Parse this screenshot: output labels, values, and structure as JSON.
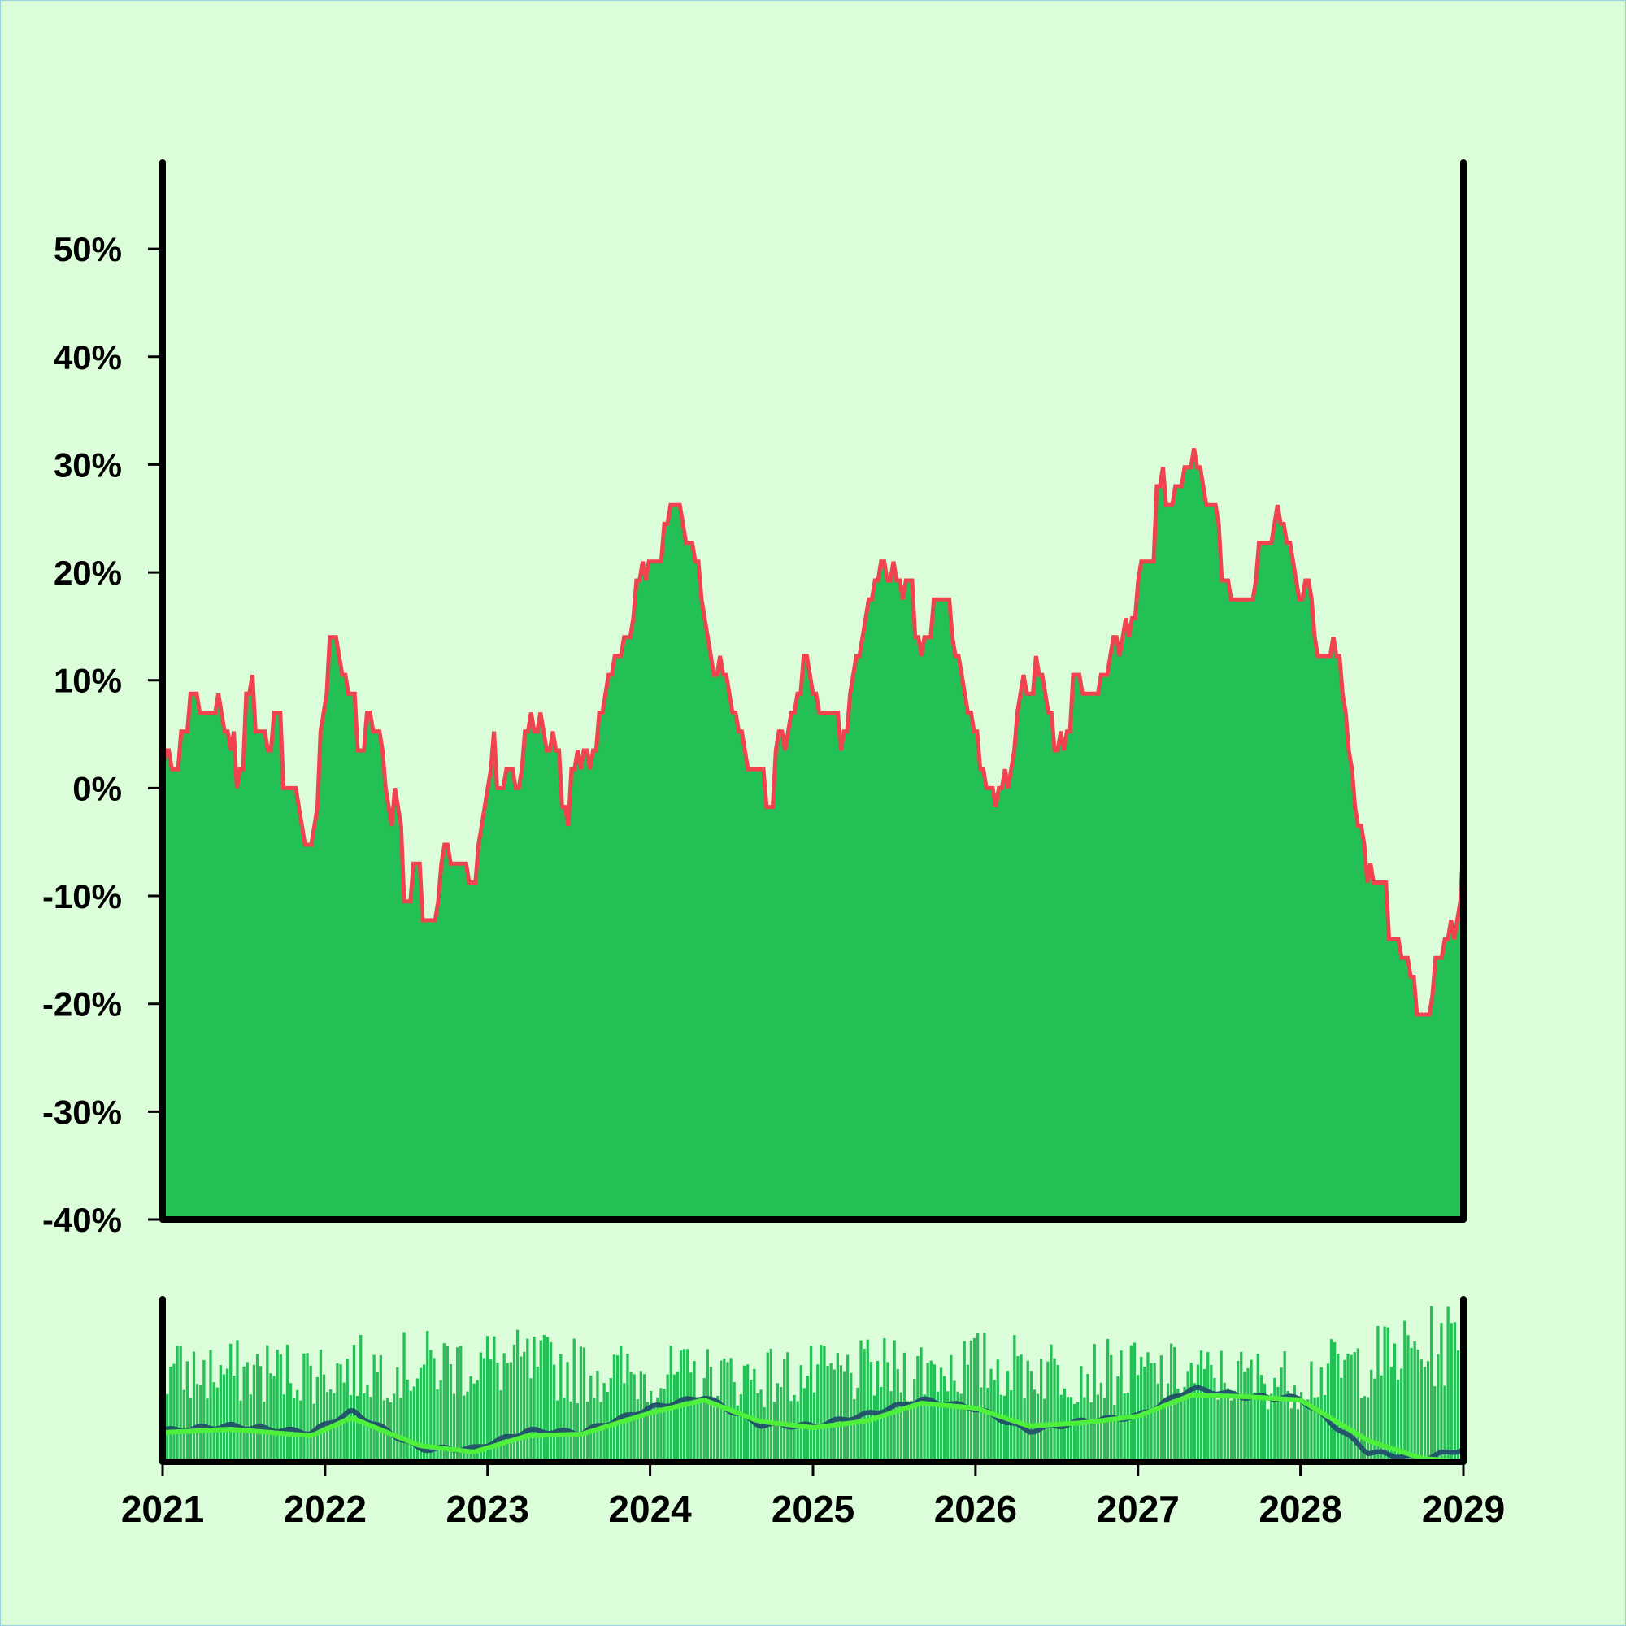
{
  "chart_data": [
    {
      "type": "area",
      "title": "",
      "xlabel": "",
      "ylabel": "",
      "x_range": [
        "2021-01-01",
        "2029-01-01"
      ],
      "ylim": [
        -40,
        58
      ],
      "yticks": [
        -40,
        -30,
        -20,
        -10,
        0,
        10,
        20,
        30,
        40,
        50
      ],
      "ytick_labels": [
        "-40%",
        "-30%",
        "-20%",
        "-10%",
        "0%",
        "10%",
        "20%",
        "30%",
        "40%",
        "50%"
      ],
      "grid": false,
      "legend": "none",
      "colors": {
        "fill": "#22c055",
        "line": "#f0434f"
      },
      "series": [
        {
          "x": [
            "2021-01-01",
            "2021-03-01",
            "2021-05-01",
            "2021-06-01",
            "2021-08-01",
            "2021-10-01",
            "2021-12-01",
            "2022-01-15",
            "2022-03-01",
            "2022-05-01",
            "2022-07-01",
            "2022-08-15",
            "2022-10-01",
            "2022-12-01",
            "2023-01-15",
            "2023-03-01",
            "2023-05-01",
            "2023-07-01",
            "2023-09-01",
            "2023-11-01",
            "2024-01-01",
            "2024-03-01",
            "2024-04-15",
            "2024-06-01",
            "2024-08-01",
            "2024-10-01",
            "2024-12-01",
            "2025-01-01",
            "2025-03-01",
            "2025-05-01",
            "2025-07-01",
            "2025-09-01",
            "2025-11-01",
            "2026-01-01",
            "2026-03-01",
            "2026-05-01",
            "2026-07-01",
            "2026-09-01",
            "2026-11-01",
            "2027-01-01",
            "2027-03-01",
            "2027-05-01",
            "2027-07-01",
            "2027-09-01",
            "2027-11-01",
            "2028-01-01",
            "2028-02-15",
            "2028-04-01",
            "2028-06-01",
            "2028-08-01",
            "2028-10-01",
            "2028-12-01",
            "2029-01-01"
          ],
          "y": [
            2,
            5,
            7,
            1,
            8,
            3,
            -3,
            12,
            7,
            5,
            -8,
            -10,
            -7,
            -11,
            3,
            2,
            7,
            -2,
            6,
            14,
            20,
            26,
            21,
            12,
            4,
            0,
            12,
            8,
            4,
            16,
            22,
            16,
            16,
            5,
            -2,
            12,
            4,
            10,
            11,
            20,
            27,
            29,
            22,
            17,
            24,
            18,
            13,
            10,
            -10,
            -12,
            -19,
            -16,
            -6
          ]
        }
      ]
    },
    {
      "type": "bar",
      "title": "",
      "xlabel": "",
      "ylabel": "",
      "x_range": [
        "2021-01-01",
        "2029-01-01"
      ],
      "xticks": [
        "2021",
        "2022",
        "2023",
        "2024",
        "2025",
        "2026",
        "2027",
        "2028",
        "2029"
      ],
      "ylim": [
        0,
        1
      ],
      "grid": false,
      "legend": "none",
      "colors": {
        "bars": "#22c055",
        "line_dark": "#24566b",
        "line_light": "#4ef03c"
      },
      "bar_level_envelope": {
        "x": [
          "2021-01-01",
          "2022-01-01",
          "2023-01-01",
          "2024-01-01",
          "2025-01-01",
          "2026-01-01",
          "2027-01-01",
          "2028-01-01",
          "2028-06-01",
          "2029-01-01"
        ],
        "y": [
          0.62,
          0.64,
          0.7,
          0.6,
          0.6,
          0.68,
          0.62,
          0.58,
          0.7,
          0.85
        ]
      },
      "series": [
        {
          "name": "",
          "x": [
            "2021-01-01",
            "2021-06-01",
            "2021-12-01",
            "2022-03-01",
            "2022-08-01",
            "2022-12-01",
            "2023-04-01",
            "2023-08-01",
            "2024-01-01",
            "2024-05-01",
            "2024-09-01",
            "2025-01-01",
            "2025-05-01",
            "2025-09-01",
            "2026-01-01",
            "2026-05-01",
            "2026-09-01",
            "2027-01-01",
            "2027-05-01",
            "2027-09-01",
            "2028-01-01",
            "2028-06-01",
            "2028-10-01",
            "2029-01-01"
          ],
          "y": [
            0.19,
            0.22,
            0.18,
            0.31,
            0.08,
            0.08,
            0.19,
            0.18,
            0.33,
            0.4,
            0.23,
            0.22,
            0.29,
            0.38,
            0.33,
            0.19,
            0.25,
            0.28,
            0.45,
            0.4,
            0.39,
            0.06,
            0.02,
            0.08
          ]
        },
        {
          "name": "",
          "x": [
            "2021-01-01",
            "2021-06-01",
            "2021-12-01",
            "2022-03-01",
            "2022-08-01",
            "2022-12-01",
            "2023-04-01",
            "2023-08-01",
            "2024-01-01",
            "2024-05-01",
            "2024-09-01",
            "2025-01-01",
            "2025-05-01",
            "2025-09-01",
            "2026-01-01",
            "2026-05-01",
            "2026-09-01",
            "2027-01-01",
            "2027-05-01",
            "2027-09-01",
            "2028-01-01",
            "2028-06-01",
            "2028-10-01",
            "2029-01-01"
          ],
          "y": [
            0.18,
            0.2,
            0.16,
            0.27,
            0.1,
            0.06,
            0.16,
            0.17,
            0.3,
            0.38,
            0.25,
            0.21,
            0.25,
            0.36,
            0.33,
            0.22,
            0.24,
            0.28,
            0.41,
            0.4,
            0.38,
            0.13,
            0.02,
            0.0
          ]
        }
      ]
    }
  ]
}
